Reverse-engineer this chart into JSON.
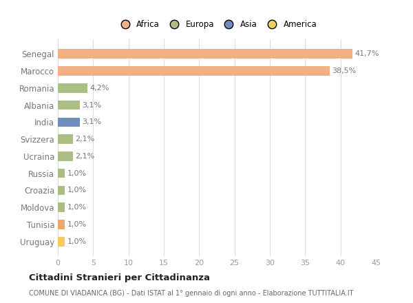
{
  "categories": [
    "Senegal",
    "Marocco",
    "Romania",
    "Albania",
    "India",
    "Svizzera",
    "Ucraina",
    "Russia",
    "Croazia",
    "Moldova",
    "Tunisia",
    "Uruguay"
  ],
  "values": [
    41.7,
    38.5,
    4.2,
    3.1,
    3.1,
    2.1,
    2.1,
    1.0,
    1.0,
    1.0,
    1.0,
    1.0
  ],
  "labels": [
    "41,7%",
    "38,5%",
    "4,2%",
    "3,1%",
    "3,1%",
    "2,1%",
    "2,1%",
    "1,0%",
    "1,0%",
    "1,0%",
    "1,0%",
    "1,0%"
  ],
  "colors": [
    "#F2B089",
    "#F2B089",
    "#ABBE84",
    "#ABBE84",
    "#6E8FBD",
    "#ABBE84",
    "#ABBE84",
    "#ABBE84",
    "#ABBE84",
    "#ABBE84",
    "#F0A86A",
    "#F5CC60"
  ],
  "legend_labels": [
    "Africa",
    "Europa",
    "Asia",
    "America"
  ],
  "legend_colors": [
    "#F2B089",
    "#ABBE84",
    "#6E8FBD",
    "#F5CC60"
  ],
  "xlim": [
    0,
    45
  ],
  "xticks": [
    0,
    5,
    10,
    15,
    20,
    25,
    30,
    35,
    40,
    45
  ],
  "title": "Cittadini Stranieri per Cittadinanza",
  "subtitle": "COMUNE DI VIADANICA (BG) - Dati ISTAT al 1° gennaio di ogni anno - Elaborazione TUTTITALIA.IT",
  "bg_color": "#FFFFFF",
  "grid_color": "#DDDDDD",
  "label_color": "#777777",
  "tick_color": "#999999",
  "title_color": "#222222",
  "subtitle_color": "#666666"
}
